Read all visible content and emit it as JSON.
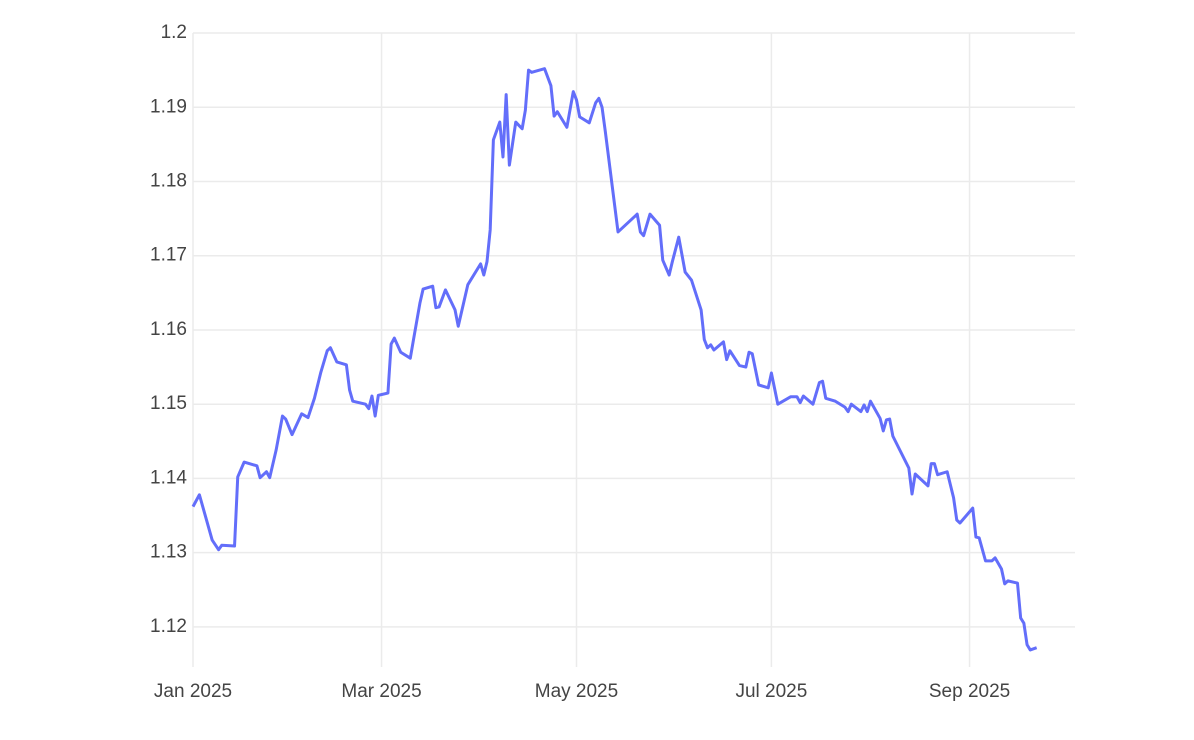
{
  "chart_data": {
    "type": "line",
    "color": "#636efa",
    "grid": true,
    "xlim": [
      "2025-01-01",
      "2025-10-04"
    ],
    "xticks": [
      {
        "value": "2025-01-01",
        "label": "Jan 2025"
      },
      {
        "value": "2025-03-01",
        "label": "Mar 2025"
      },
      {
        "value": "2025-05-01",
        "label": "May 2025"
      },
      {
        "value": "2025-07-01",
        "label": "Jul 2025"
      },
      {
        "value": "2025-09-01",
        "label": "Sep 2025"
      }
    ],
    "ylim": [
      1.1146,
      1.2
    ],
    "yticks": [
      1.12,
      1.13,
      1.14,
      1.15,
      1.16,
      1.17,
      1.18,
      1.19,
      1.2
    ],
    "x": [
      "2025-01-01",
      "2025-01-03",
      "2025-01-07",
      "2025-01-09",
      "2025-01-10",
      "2025-01-14",
      "2025-01-15",
      "2025-01-17",
      "2025-01-21",
      "2025-01-22",
      "2025-01-24",
      "2025-01-25",
      "2025-01-27",
      "2025-01-29",
      "2025-01-30",
      "2025-02-01",
      "2025-02-04",
      "2025-02-06",
      "2025-02-08",
      "2025-02-10",
      "2025-02-12",
      "2025-02-13",
      "2025-02-15",
      "2025-02-18",
      "2025-02-19",
      "2025-02-20",
      "2025-02-24",
      "2025-02-25",
      "2025-02-26",
      "2025-02-27",
      "2025-02-28",
      "2025-03-03",
      "2025-03-04",
      "2025-03-05",
      "2025-03-07",
      "2025-03-10",
      "2025-03-11",
      "2025-03-13",
      "2025-03-14",
      "2025-03-17",
      "2025-03-18",
      "2025-03-19",
      "2025-03-21",
      "2025-03-24",
      "2025-03-25",
      "2025-03-28",
      "2025-04-01",
      "2025-04-02",
      "2025-04-03",
      "2025-04-04",
      "2025-04-05",
      "2025-04-07",
      "2025-04-08",
      "2025-04-09",
      "2025-04-10",
      "2025-04-12",
      "2025-04-14",
      "2025-04-15",
      "2025-04-16",
      "2025-04-17",
      "2025-04-21",
      "2025-04-23",
      "2025-04-24",
      "2025-04-25",
      "2025-04-26",
      "2025-04-28",
      "2025-04-30",
      "2025-05-01",
      "2025-05-02",
      "2025-05-05",
      "2025-05-07",
      "2025-05-08",
      "2025-05-09",
      "2025-05-10",
      "2025-05-14",
      "2025-05-20",
      "2025-05-21",
      "2025-05-22",
      "2025-05-24",
      "2025-05-27",
      "2025-05-28",
      "2025-05-30",
      "2025-05-31",
      "2025-06-02",
      "2025-06-04",
      "2025-06-06",
      "2025-06-09",
      "2025-06-10",
      "2025-06-11",
      "2025-06-12",
      "2025-06-13",
      "2025-06-16",
      "2025-06-17",
      "2025-06-18",
      "2025-06-21",
      "2025-06-23",
      "2025-06-24",
      "2025-06-25",
      "2025-06-27",
      "2025-06-30",
      "2025-07-01",
      "2025-07-03",
      "2025-07-07",
      "2025-07-09",
      "2025-07-10",
      "2025-07-11",
      "2025-07-14",
      "2025-07-16",
      "2025-07-17",
      "2025-07-18",
      "2025-07-21",
      "2025-07-24",
      "2025-07-25",
      "2025-07-26",
      "2025-07-29",
      "2025-07-30",
      "2025-07-31",
      "2025-08-01",
      "2025-08-04",
      "2025-08-05",
      "2025-08-06",
      "2025-08-07",
      "2025-08-08",
      "2025-08-13",
      "2025-08-14",
      "2025-08-15",
      "2025-08-19",
      "2025-08-20",
      "2025-08-21",
      "2025-08-22",
      "2025-08-25",
      "2025-08-27",
      "2025-08-28",
      "2025-08-29",
      "2025-09-02",
      "2025-09-03",
      "2025-09-04",
      "2025-09-06",
      "2025-09-08",
      "2025-09-09",
      "2025-09-11",
      "2025-09-12",
      "2025-09-13",
      "2025-09-16",
      "2025-09-17",
      "2025-09-18",
      "2025-09-19",
      "2025-09-20",
      "2025-09-22"
    ],
    "values": [
      1.1362,
      1.1378,
      1.1317,
      1.1304,
      1.131,
      1.1309,
      1.1402,
      1.1422,
      1.1417,
      1.1401,
      1.1409,
      1.1401,
      1.1438,
      1.1484,
      1.148,
      1.1459,
      1.1487,
      1.1482,
      1.1508,
      1.1543,
      1.1572,
      1.1576,
      1.1557,
      1.1553,
      1.1519,
      1.1504,
      1.15,
      1.1494,
      1.1511,
      1.1484,
      1.1512,
      1.1515,
      1.1581,
      1.1589,
      1.157,
      1.1562,
      1.1587,
      1.1636,
      1.1655,
      1.1659,
      1.163,
      1.1631,
      1.1654,
      1.1627,
      1.1605,
      1.1661,
      1.1689,
      1.1674,
      1.1692,
      1.1735,
      1.1856,
      1.188,
      1.1833,
      1.1917,
      1.1822,
      1.188,
      1.1871,
      1.1896,
      1.195,
      1.1947,
      1.1952,
      1.1929,
      1.1888,
      1.1894,
      1.1887,
      1.1873,
      1.1921,
      1.191,
      1.1887,
      1.1879,
      1.1906,
      1.1912,
      1.19,
      1.1868,
      1.1732,
      1.1756,
      1.1732,
      1.1727,
      1.1756,
      1.1741,
      1.1694,
      1.1674,
      1.1692,
      1.1725,
      1.1678,
      1.1667,
      1.1627,
      1.1587,
      1.1576,
      1.158,
      1.1573,
      1.1584,
      1.156,
      1.1572,
      1.1552,
      1.155,
      1.157,
      1.1568,
      1.1526,
      1.1522,
      1.1542,
      1.15,
      1.151,
      1.151,
      1.1502,
      1.1511,
      1.15,
      1.1529,
      1.1531,
      1.1508,
      1.1504,
      1.1496,
      1.149,
      1.15,
      1.149,
      1.1499,
      1.149,
      1.1504,
      1.1481,
      1.1464,
      1.1479,
      1.148,
      1.1457,
      1.1414,
      1.1379,
      1.1406,
      1.139,
      1.142,
      1.142,
      1.1405,
      1.1409,
      1.1374,
      1.1344,
      1.134,
      1.136,
      1.1321,
      1.132,
      1.1289,
      1.1289,
      1.1293,
      1.1278,
      1.1258,
      1.1262,
      1.1259,
      1.1212,
      1.1205,
      1.1176,
      1.1169,
      1.1172
    ]
  }
}
